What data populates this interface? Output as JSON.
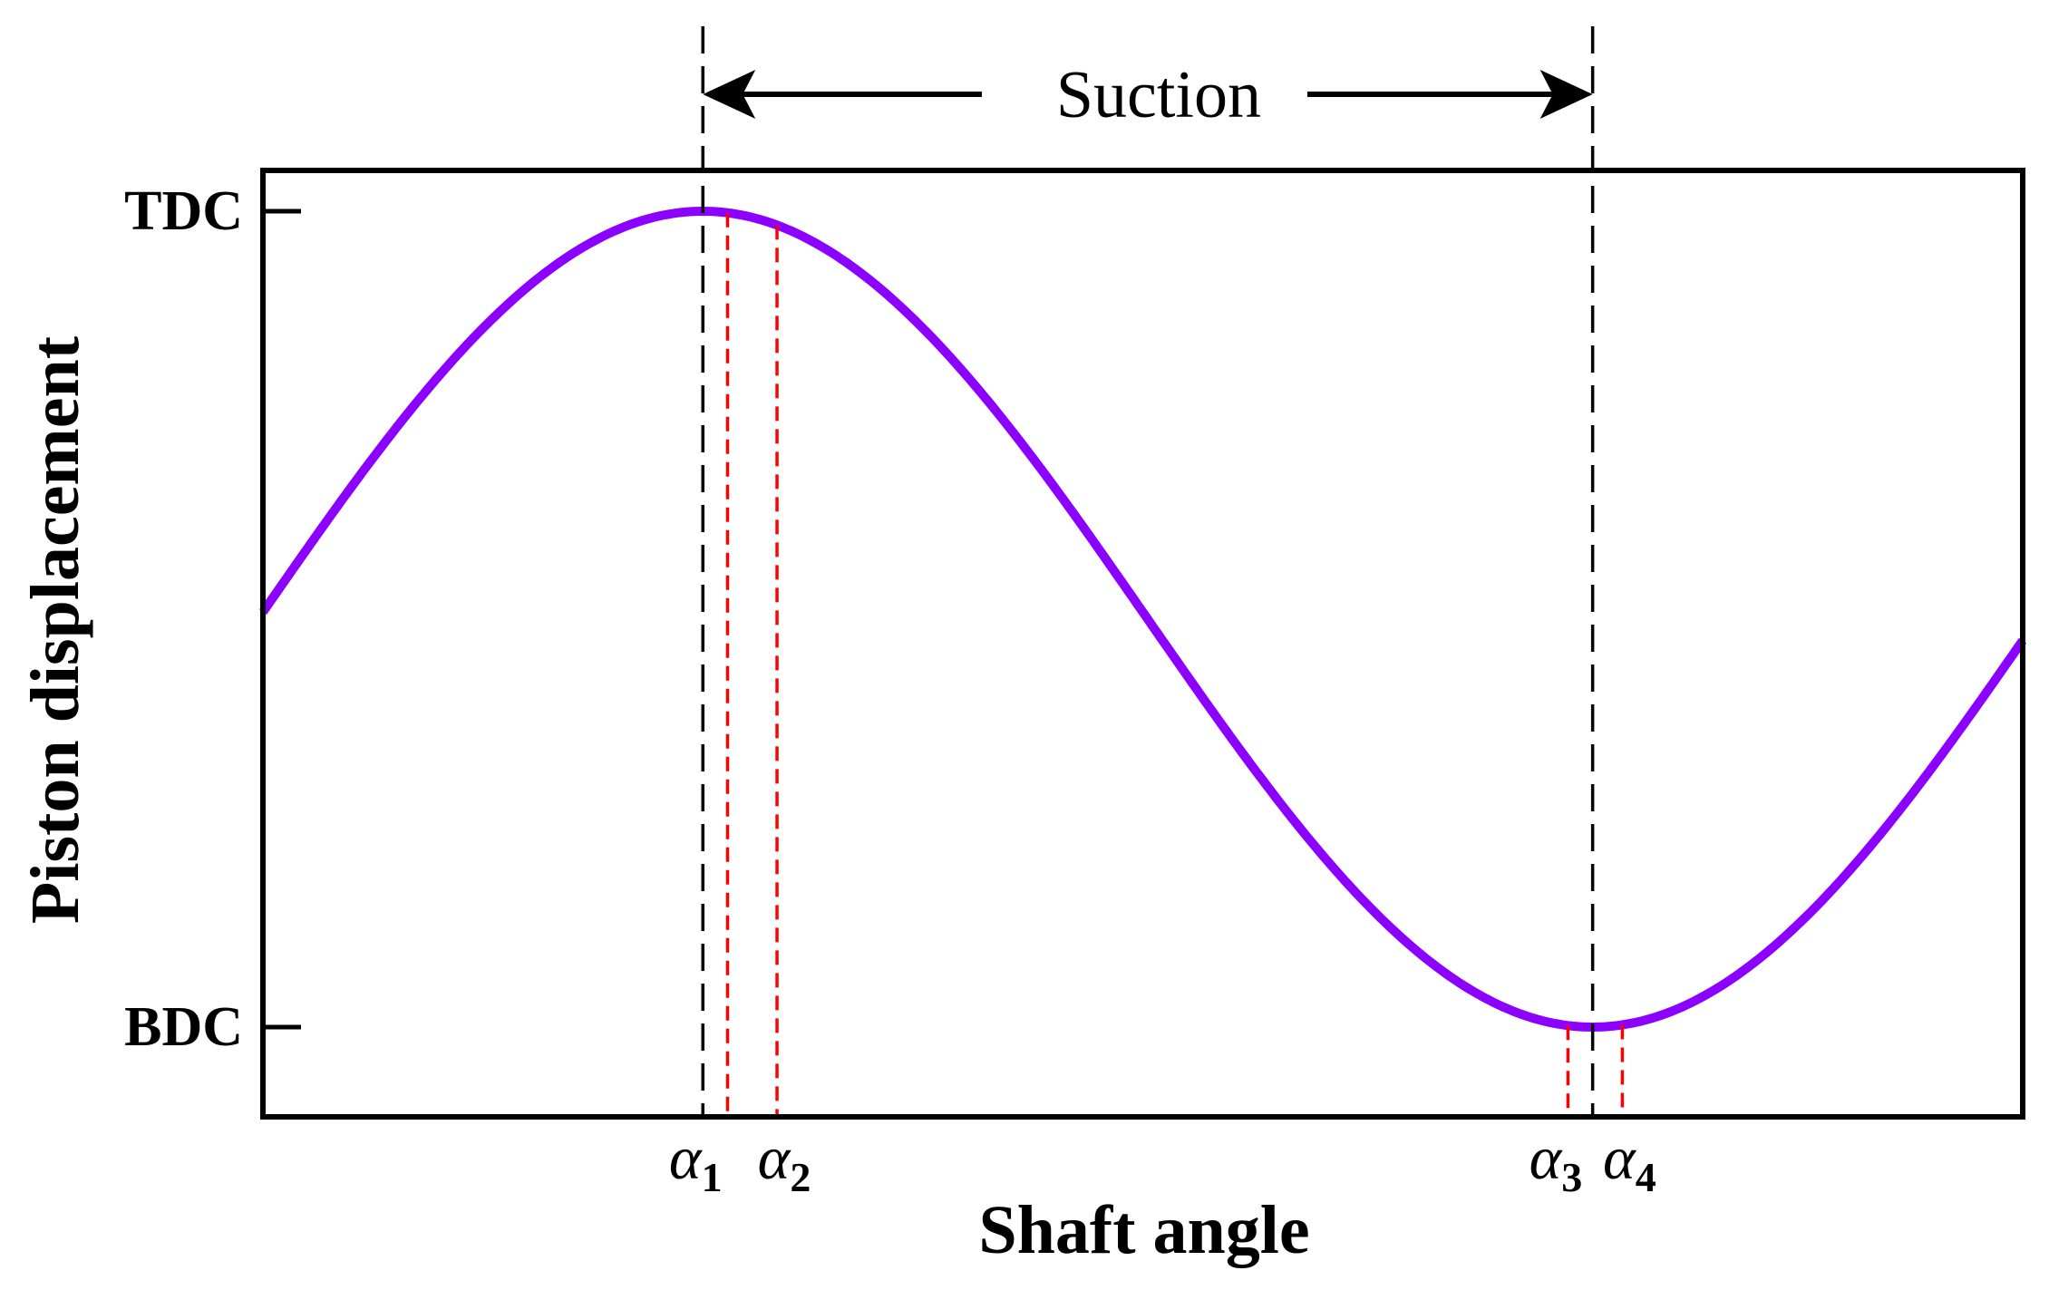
{
  "chart_data": {
    "type": "line",
    "title": "",
    "xlabel": "Shaft angle",
    "ylabel": "Piston displacement",
    "xlim": [
      -89,
      267
    ],
    "ylim": [
      -1.22,
      1.1
    ],
    "ytick_labels": [
      {
        "label": "TDC",
        "value": 1
      },
      {
        "label": "BDC",
        "value": -1
      }
    ],
    "series": [
      {
        "name": "Piston displacement",
        "color": "#8B00FF",
        "function": "cos(shaft angle)",
        "x_step": 2
      }
    ],
    "reference_lines": {
      "black": [
        0,
        180
      ],
      "red": [
        5,
        15,
        175,
        186
      ]
    },
    "x_markers": [
      {
        "symbol": "α",
        "sub": "1",
        "x": 0
      },
      {
        "symbol": "α",
        "sub": "2",
        "x": 15
      },
      {
        "symbol": "α",
        "sub": "3",
        "x": 174
      },
      {
        "symbol": "α",
        "sub": "4",
        "x": 186
      }
    ],
    "annotation": {
      "text": "Suction",
      "from": 0,
      "to": 180
    },
    "grid": false,
    "legend": "none"
  }
}
